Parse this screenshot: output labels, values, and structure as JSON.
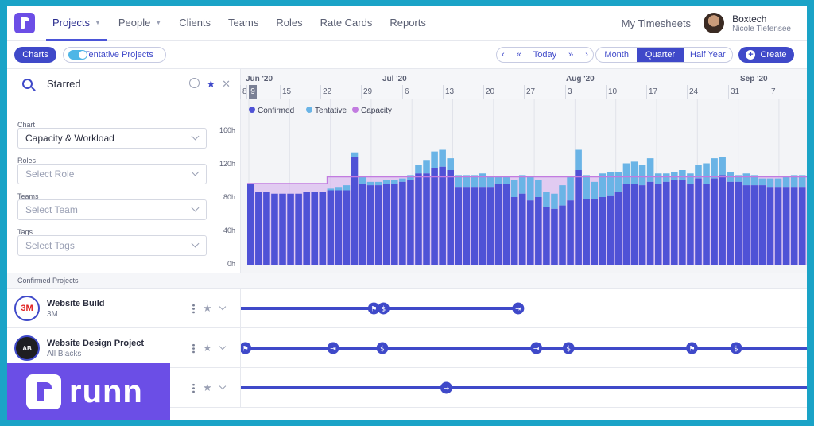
{
  "nav": {
    "items": [
      {
        "label": "Projects",
        "active": true,
        "caret": true
      },
      {
        "label": "People",
        "active": false,
        "caret": true
      },
      {
        "label": "Clients",
        "active": false,
        "caret": false
      },
      {
        "label": "Teams",
        "active": false,
        "caret": false
      },
      {
        "label": "Roles",
        "active": false,
        "caret": false
      },
      {
        "label": "Rate Cards",
        "active": false,
        "caret": false
      },
      {
        "label": "Reports",
        "active": false,
        "caret": false
      }
    ],
    "timesheets": "My Timesheets",
    "org": "Boxtech",
    "user": "Nicole Tiefensee"
  },
  "toolbar": {
    "charts": "Charts",
    "tentative": "Tentative Projects",
    "today": "Today",
    "scales": [
      "Month",
      "Quarter",
      "Half Year"
    ],
    "selected_scale": "Quarter",
    "create": "Create"
  },
  "search": {
    "value": "Starred"
  },
  "timeline": {
    "months": [
      "Jun '20",
      "Jul '20",
      "Aug '20",
      "Sep '20"
    ],
    "weeks": [
      "8",
      "9",
      "15",
      "22",
      "29",
      "6",
      "13",
      "20",
      "27",
      "3",
      "10",
      "17",
      "24",
      "31",
      "7"
    ],
    "today": "9"
  },
  "filters": {
    "chart_label": "Chart",
    "chart_value": "Capacity & Workload",
    "roles_label": "Roles",
    "roles_placeholder": "Select Role",
    "teams_label": "Teams",
    "teams_placeholder": "Select Team",
    "tags_label": "Tags",
    "tags_placeholder": "Select Tags"
  },
  "chart_data": {
    "type": "bar",
    "ylim": [
      0,
      170
    ],
    "yticks": [
      "160h",
      "120h",
      "80h",
      "40h",
      "0h"
    ],
    "ytick_values": [
      160,
      120,
      80,
      40,
      0
    ],
    "legend_position": "top-left",
    "colors": {
      "confirmed": "#4f52d6",
      "tentative": "#6ab4e6",
      "capacity": "#d9b9ee",
      "capacity_line": "#c27be0"
    },
    "series": [
      {
        "name": "Confirmed",
        "values": [
          96,
          86,
          86,
          84,
          84,
          84,
          84,
          86,
          86,
          86,
          88,
          88,
          88,
          128,
          96,
          94,
          94,
          96,
          96,
          98,
          100,
          108,
          108,
          114,
          116,
          112,
          92,
          92,
          92,
          92,
          92,
          96,
          96,
          80,
          84,
          76,
          80,
          68,
          66,
          70,
          76,
          112,
          78,
          78,
          80,
          82,
          86,
          96,
          96,
          94,
          98,
          96,
          98,
          100,
          100,
          96,
          102,
          96,
          102,
          106,
          98,
          98,
          94,
          94,
          94,
          92,
          92,
          92,
          92,
          92
        ]
      },
      {
        "name": "Tentative",
        "values": [
          0,
          0,
          0,
          0,
          0,
          0,
          0,
          0,
          0,
          0,
          2,
          4,
          6,
          5,
          8,
          4,
          4,
          4,
          4,
          4,
          6,
          10,
          16,
          20,
          20,
          14,
          14,
          14,
          14,
          16,
          12,
          8,
          8,
          20,
          22,
          28,
          20,
          18,
          18,
          24,
          28,
          24,
          28,
          20,
          28,
          28,
          24,
          24,
          26,
          24,
          28,
          12,
          10,
          10,
          12,
          12,
          16,
          24,
          24,
          22,
          12,
          8,
          14,
          12,
          8,
          10,
          10,
          12,
          14,
          14
        ]
      },
      {
        "name": "Capacity",
        "values": [
          96,
          96,
          96,
          96,
          96,
          96,
          96,
          96,
          96,
          96,
          104,
          104,
          104,
          104,
          104,
          104,
          104,
          104,
          104,
          104,
          104,
          104,
          104,
          104,
          104,
          104,
          104,
          104,
          104,
          104,
          104,
          104,
          104,
          104,
          104,
          104,
          104,
          104,
          104,
          104,
          104,
          104,
          104,
          104,
          104,
          104,
          104,
          104,
          104,
          104,
          104,
          104,
          104,
          104,
          104,
          104,
          104,
          104,
          104,
          104,
          104,
          104,
          104,
          104,
          104,
          104,
          104,
          104,
          104,
          104
        ]
      }
    ]
  },
  "projects": {
    "section_title": "Confirmed Projects",
    "rows": [
      {
        "name": "Website Build",
        "client": "3M",
        "logo": "3M",
        "bar": [
          0,
          0.49
        ],
        "markers": [
          {
            "at": 0.235,
            "type": "flag"
          },
          {
            "at": 0.252,
            "type": "dollar"
          },
          {
            "at": 0.49,
            "type": "end"
          }
        ]
      },
      {
        "name": "Website Design Project",
        "client": "All Blacks",
        "logo": "AB",
        "bar": [
          0,
          1
        ],
        "markers": [
          {
            "at": 0.008,
            "type": "flag"
          },
          {
            "at": 0.163,
            "type": "end"
          },
          {
            "at": 0.25,
            "type": "dollar"
          },
          {
            "at": 0.522,
            "type": "end"
          },
          {
            "at": 0.579,
            "type": "dollar"
          },
          {
            "at": 0.797,
            "type": "flag"
          },
          {
            "at": 0.875,
            "type": "dollar"
          }
        ]
      },
      {
        "name": "",
        "client": "",
        "logo": "",
        "bar": [
          0,
          1
        ],
        "markers": [
          {
            "at": 0.363,
            "type": "start"
          }
        ]
      }
    ]
  },
  "brand": {
    "word": "runn"
  }
}
